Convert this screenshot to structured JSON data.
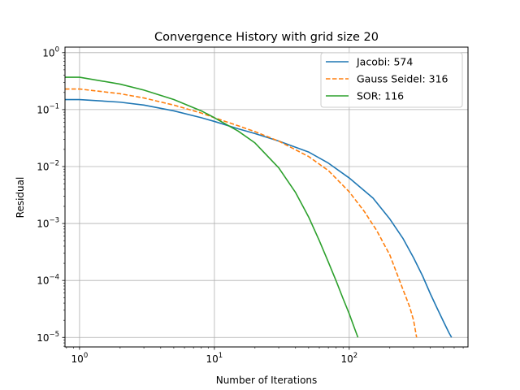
{
  "chart_data": {
    "type": "line",
    "title": "Convergence History with grid size 20",
    "xlabel": "Number of Iterations",
    "ylabel": "Residual",
    "xscale": "log",
    "yscale": "log",
    "xlim": [
      0.78,
      760
    ],
    "ylim": [
      6.8e-06,
      1.25
    ],
    "grid": true,
    "legend_position": "top-right",
    "x_ticks": [
      {
        "value": 1,
        "base": "10",
        "exp": "0"
      },
      {
        "value": 10,
        "base": "10",
        "exp": "1"
      },
      {
        "value": 100,
        "base": "10",
        "exp": "2"
      }
    ],
    "y_ticks": [
      {
        "value": 1,
        "base": "10",
        "exp": "0"
      },
      {
        "value": 0.1,
        "base": "10",
        "exp": "−1"
      },
      {
        "value": 0.01,
        "base": "10",
        "exp": "−2"
      },
      {
        "value": 0.001,
        "base": "10",
        "exp": "−3"
      },
      {
        "value": 0.0001,
        "base": "10",
        "exp": "−4"
      },
      {
        "value": 1e-05,
        "base": "10",
        "exp": "−5"
      }
    ],
    "series": [
      {
        "name": "Jacobi: 574",
        "color": "#1f77b4",
        "dash": "solid",
        "x": [
          0,
          1,
          2,
          3,
          5,
          8,
          10,
          15,
          20,
          30,
          50,
          70,
          100,
          150,
          200,
          250,
          300,
          350,
          400,
          450,
          500,
          550,
          574
        ],
        "y": [
          0.15,
          0.15,
          0.135,
          0.12,
          0.095,
          0.072,
          0.062,
          0.046,
          0.038,
          0.028,
          0.018,
          0.0115,
          0.0063,
          0.0028,
          0.0012,
          0.00055,
          0.00025,
          0.00012,
          5.8e-05,
          3.2e-05,
          1.9e-05,
          1.2e-05,
          1e-05
        ]
      },
      {
        "name": "Gauss Seidel: 316",
        "color": "#ff7f0e",
        "dash": "dashed",
        "x": [
          0,
          1,
          2,
          3,
          5,
          8,
          10,
          15,
          20,
          30,
          50,
          70,
          100,
          130,
          160,
          200,
          250,
          280,
          300,
          316
        ],
        "y": [
          0.23,
          0.23,
          0.19,
          0.16,
          0.12,
          0.087,
          0.072,
          0.052,
          0.041,
          0.028,
          0.015,
          0.0085,
          0.0036,
          0.0016,
          0.00075,
          0.00028,
          7e-05,
          3.5e-05,
          2e-05,
          1e-05
        ]
      },
      {
        "name": "SOR: 116",
        "color": "#2ca02c",
        "dash": "solid",
        "x": [
          0,
          1,
          2,
          3,
          5,
          8,
          10,
          15,
          20,
          30,
          40,
          50,
          60,
          70,
          80,
          90,
          100,
          110,
          116
        ],
        "y": [
          0.37,
          0.37,
          0.28,
          0.22,
          0.15,
          0.095,
          0.072,
          0.042,
          0.026,
          0.0095,
          0.0035,
          0.0013,
          0.0005,
          0.00021,
          9.8e-05,
          4.8e-05,
          2.6e-05,
          1.4e-05,
          1e-05
        ]
      }
    ]
  }
}
